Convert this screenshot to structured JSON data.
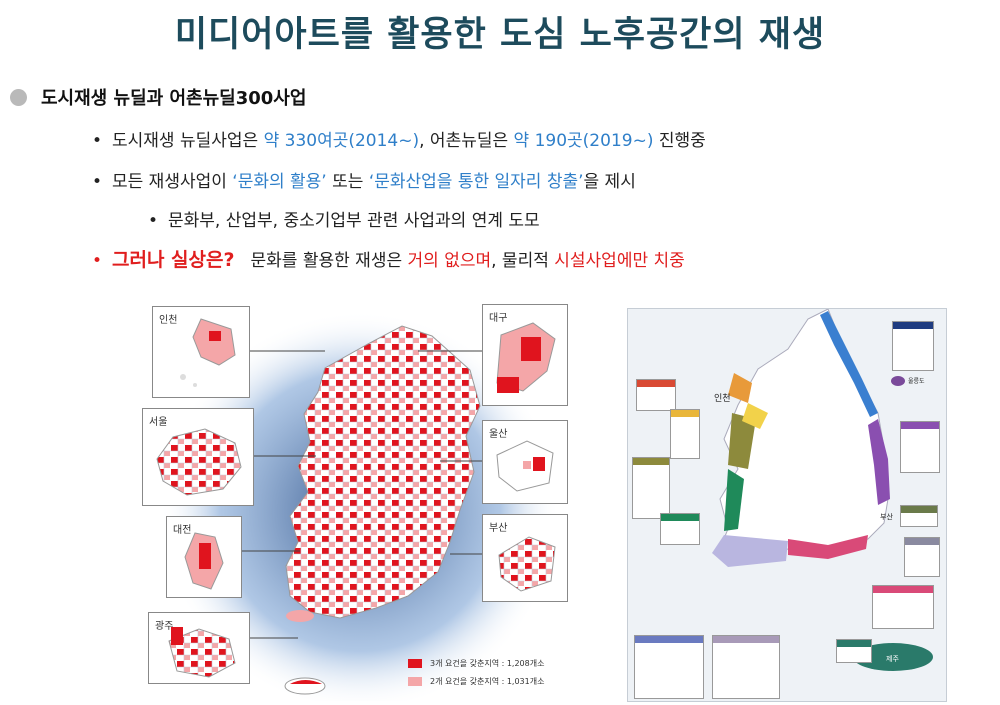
{
  "title": "미디어아트를 활용한 도심 노후공간의 재생",
  "subtitle": "도시재생 뉴딜과 어촌뉴딜300사업",
  "bullets": {
    "b1": {
      "t1": "도시재생 뉴딜사업은 ",
      "t2": "약 330여곳(2014~)",
      "t3": ", 어촌뉴딜은 ",
      "t4": "약 190곳(2019~)",
      "t5": " 진행중"
    },
    "b2": {
      "t1": "모든 재생사업이 ",
      "t2": "‘문화의 활용’",
      "t3": " 또는 ",
      "t4": "‘문화산업을 통한 일자리 창출’",
      "t5": "을 제시"
    },
    "b3": {
      "t1": "문화부, 산업부, 중소기업부 관련 사업과의 연계 도모"
    },
    "b4": {
      "t1": "그러나 실상은?",
      "t2": "문화를 활용한 재생은 ",
      "t3": "거의 없으며",
      "t4": ", 물리적 ",
      "t5": "시설사업에만 치중"
    }
  },
  "left_map": {
    "insets": {
      "incheon": "인천",
      "seoul": "서울",
      "daejeon": "대전",
      "gwangju": "광주",
      "daegu": "대구",
      "ulsan": "울산",
      "busan": "부산"
    },
    "legend": {
      "item1": "3개 요건을 갖춘지역 : 1,208개소",
      "item2": "2개 요건을 갖춘지역 : 1,031개소"
    },
    "colors": {
      "primary": "#e0141e",
      "secondary": "#f4a6a8"
    }
  },
  "right_map": {
    "labels": {
      "incheon": "인천",
      "ulleung": "울릉도",
      "busan": "부산",
      "jeju": "제주"
    },
    "colors": {
      "blue": "#3a7fd0",
      "purple": "#8a4fb0",
      "pink": "#d94a78",
      "lavender": "#b9b6e0",
      "green": "#1f8a5a",
      "olive": "#8d8a3c",
      "yellow": "#f2d24a",
      "orange": "#e89a3a",
      "teal": "#2a7a6a"
    }
  }
}
